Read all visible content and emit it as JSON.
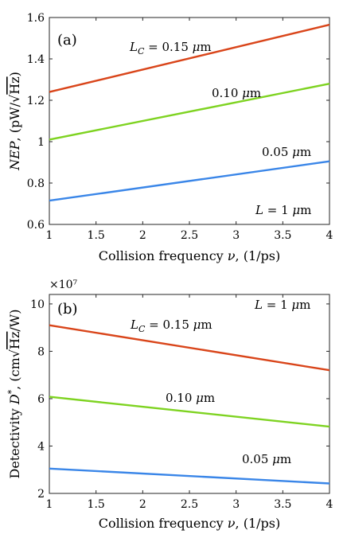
{
  "chart_data": [
    {
      "type": "line",
      "panel_label": "(a)",
      "xlabel": "Collision frequency ν, (1/ps)",
      "ylabel": "NEP, (pW/√Hz)",
      "xlim": [
        1,
        4
      ],
      "ylim": [
        0.6,
        1.6
      ],
      "xticks": [
        "1",
        "1.5",
        "2",
        "2.5",
        "3",
        "3.5",
        "4"
      ],
      "yticks": [
        "0.6",
        "0.8",
        "1",
        "1.2",
        "1.4",
        "1.6"
      ],
      "y_exponent": "",
      "grid": false,
      "series": [
        {
          "label": "L_C = 0.15 μm",
          "color": "#d9451a",
          "x": [
            1,
            4
          ],
          "y": [
            1.24,
            1.565
          ]
        },
        {
          "label": "0.10 μm",
          "color": "#7ed321",
          "x": [
            1,
            4
          ],
          "y": [
            1.01,
            1.28
          ]
        },
        {
          "label": "0.05 μm",
          "color": "#3a86e8",
          "x": [
            1,
            4
          ],
          "y": [
            0.715,
            0.905
          ]
        }
      ],
      "annotations": [
        {
          "text": "L_C = 0.15 μm"
        },
        {
          "text": "0.10 μm"
        },
        {
          "text": "0.05 μm"
        },
        {
          "text": "L = 1 μm"
        }
      ]
    },
    {
      "type": "line",
      "panel_label": "(b)",
      "xlabel": "Collision frequency ν, (1/ps)",
      "ylabel": "Detectivity D*, (cm√Hz/W)",
      "xlim": [
        1,
        4
      ],
      "ylim": [
        2,
        10.4
      ],
      "xticks": [
        "1",
        "1.5",
        "2",
        "2.5",
        "3",
        "3.5",
        "4"
      ],
      "yticks": [
        "2",
        "4",
        "6",
        "8",
        "10"
      ],
      "y_exponent": "×10⁷",
      "grid": false,
      "series": [
        {
          "label": "L_C = 0.15 μm",
          "color": "#d9451a",
          "x": [
            1,
            4
          ],
          "y": [
            9.1,
            7.2
          ]
        },
        {
          "label": "0.10 μm",
          "color": "#7ed321",
          "x": [
            1,
            4
          ],
          "y": [
            6.08,
            4.82
          ]
        },
        {
          "label": "0.05 μm",
          "color": "#3a86e8",
          "x": [
            1,
            4
          ],
          "y": [
            3.05,
            2.42
          ]
        }
      ],
      "annotations": [
        {
          "text": "L = 1 μm"
        },
        {
          "text": "L_C = 0.15 μm"
        },
        {
          "text": "0.10 μm"
        },
        {
          "text": "0.05 μm"
        }
      ]
    }
  ]
}
